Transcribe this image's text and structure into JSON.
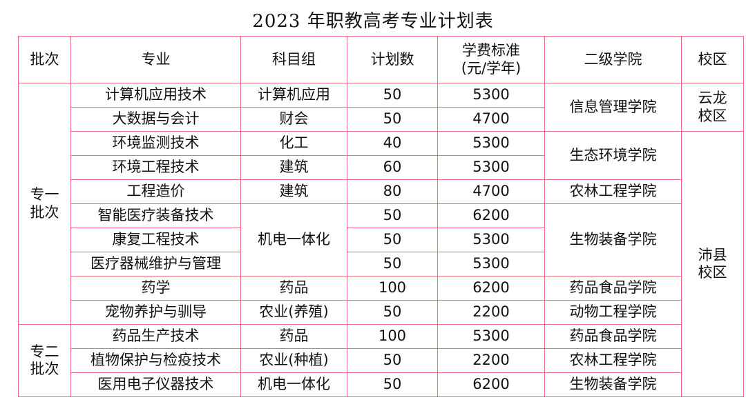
{
  "title": "2023 年职教高考专业计划表",
  "headers": {
    "batch": "批次",
    "major": "专业",
    "subject_group": "科目组",
    "plan_count": "计划数",
    "tuition_line1": "学费标准",
    "tuition_line2": "(元/学年)",
    "college": "二级学院",
    "campus": "校区"
  },
  "batches": [
    {
      "line1": "专一",
      "line2": "批次"
    },
    {
      "line1": "专二",
      "line2": "批次"
    }
  ],
  "campuses": [
    {
      "line1": "云龙",
      "line2": "校区"
    },
    {
      "line1": "沛县",
      "line2": "校区"
    }
  ],
  "rows": [
    {
      "major": "计算机应用技术",
      "subject": "计算机应用",
      "plan": "50",
      "fee": "5300",
      "college": "信息管理学院"
    },
    {
      "major": "大数据与会计",
      "subject": "财会",
      "plan": "50",
      "fee": "4700",
      "college": ""
    },
    {
      "major": "环境监测技术",
      "subject": "化工",
      "plan": "40",
      "fee": "5300",
      "college": "生态环境学院"
    },
    {
      "major": "环境工程技术",
      "subject": "建筑",
      "plan": "60",
      "fee": "5300",
      "college": ""
    },
    {
      "major": "工程造价",
      "subject": "建筑",
      "plan": "80",
      "fee": "4700",
      "college": "农林工程学院"
    },
    {
      "major": "智能医疗装备技术",
      "subject": "机电一体化",
      "plan": "50",
      "fee": "6200",
      "college": "生物装备学院"
    },
    {
      "major": "康复工程技术",
      "subject": "",
      "plan": "50",
      "fee": "5300",
      "college": ""
    },
    {
      "major": "医疗器械维护与管理",
      "subject": "",
      "plan": "50",
      "fee": "5300",
      "college": ""
    },
    {
      "major": "药学",
      "subject": "药品",
      "plan": "100",
      "fee": "6200",
      "college": "药品食品学院"
    },
    {
      "major": "宠物养护与驯导",
      "subject": "农业(养殖)",
      "plan": "50",
      "fee": "2200",
      "college": "动物工程学院"
    },
    {
      "major": "药品生产技术",
      "subject": "药品",
      "plan": "100",
      "fee": "5300",
      "college": "药品食品学院"
    },
    {
      "major": "植物保护与检疫技术",
      "subject": "农业(种植)",
      "plan": "50",
      "fee": "2200",
      "college": "农林工程学院"
    },
    {
      "major": "医用电子仪器技术",
      "subject": "机电一体化",
      "plan": "50",
      "fee": "6200",
      "college": "生物装备学院"
    }
  ]
}
